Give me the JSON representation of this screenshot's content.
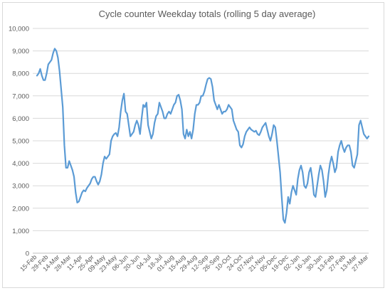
{
  "chart_data": {
    "type": "line",
    "title": "Cycle counter Weekday totals (rolling 5 day average)",
    "xlabel": "",
    "ylabel": "",
    "ylim": [
      0,
      10000
    ],
    "yticks": [
      "0",
      "1,000",
      "2,000",
      "3,000",
      "4,000",
      "5,000",
      "6,000",
      "7,000",
      "8,000",
      "9,000",
      "10,000"
    ],
    "ytick_values": [
      0,
      1000,
      2000,
      3000,
      4000,
      5000,
      6000,
      7000,
      8000,
      9000,
      10000
    ],
    "xticks": [
      "15-Feb",
      "29-Feb",
      "14-Mar",
      "28-Mar",
      "11-Apr",
      "25-Apr",
      "09-May",
      "23-May",
      "06-Jun",
      "20-Jun",
      "04-Jul",
      "18-Jul",
      "01-Aug",
      "15-Aug",
      "29-Aug",
      "12-Sep",
      "26-Sep",
      "10-Oct",
      "24-Oct",
      "07-Nov",
      "21-Nov",
      "05-Dec",
      "19-Dec",
      "02-Jan",
      "16-Jan",
      "30-Jan",
      "13-Feb",
      "27-Feb",
      "13-Mar",
      "27-Mar"
    ],
    "grid": true,
    "legend": "none",
    "color": "#5b9bd5",
    "series": [
      {
        "values": [
          7900,
          8000,
          8200,
          7900,
          7700,
          7700,
          8000,
          8400,
          8500,
          8600,
          8900,
          9100,
          9000,
          8700,
          8100,
          7300,
          6500,
          4800,
          3800,
          3800,
          4100,
          3900,
          3700,
          3400,
          2700,
          2250,
          2300,
          2500,
          2700,
          2800,
          2750,
          2900,
          3000,
          3100,
          3300,
          3400,
          3400,
          3200,
          3050,
          3200,
          3500,
          4000,
          4300,
          4200,
          4300,
          4400,
          5000,
          5200,
          5300,
          5350,
          5200,
          5600,
          6300,
          6800,
          7100,
          6300,
          6200,
          5700,
          5200,
          5300,
          5400,
          5700,
          5900,
          5700,
          5300,
          6000,
          6600,
          6500,
          6700,
          5700,
          5400,
          5100,
          5300,
          5800,
          6100,
          6200,
          6700,
          6500,
          6300,
          6000,
          6000,
          6200,
          6300,
          6200,
          6400,
          6600,
          6700,
          7000,
          7050,
          6800,
          6400,
          5300,
          5100,
          5500,
          5200,
          5400,
          5100,
          5500,
          6200,
          6600,
          6600,
          6700,
          7000,
          7000,
          7200,
          7500,
          7750,
          7800,
          7750,
          7400,
          6800,
          6600,
          6400,
          6600,
          6400,
          6200,
          6300,
          6300,
          6400,
          6600,
          6500,
          6400,
          5900,
          5700,
          5500,
          5400,
          4800,
          4700,
          4850,
          5200,
          5400,
          5500,
          5600,
          5500,
          5450,
          5400,
          5450,
          5300,
          5250,
          5400,
          5600,
          5700,
          5800,
          5500,
          5200,
          5000,
          5300,
          5700,
          5600,
          5000,
          4300,
          3600,
          2500,
          1500,
          1350,
          1800,
          2500,
          2200,
          2700,
          3000,
          2800,
          2600,
          3300,
          3700,
          3900,
          3600,
          3000,
          2900,
          3100,
          3600,
          3800,
          3300,
          2600,
          2500,
          3000,
          3500,
          3900,
          3700,
          3200,
          2500,
          2800,
          3500,
          4000,
          4300,
          4000,
          3600,
          3800,
          4500,
          4800,
          5000,
          4700,
          4500,
          4700,
          4800,
          4800,
          4500,
          3900,
          3800,
          4100,
          4400,
          5700,
          5900,
          5600,
          5300,
          5200,
          5100,
          5200
        ]
      }
    ],
    "x_count": 191
  }
}
